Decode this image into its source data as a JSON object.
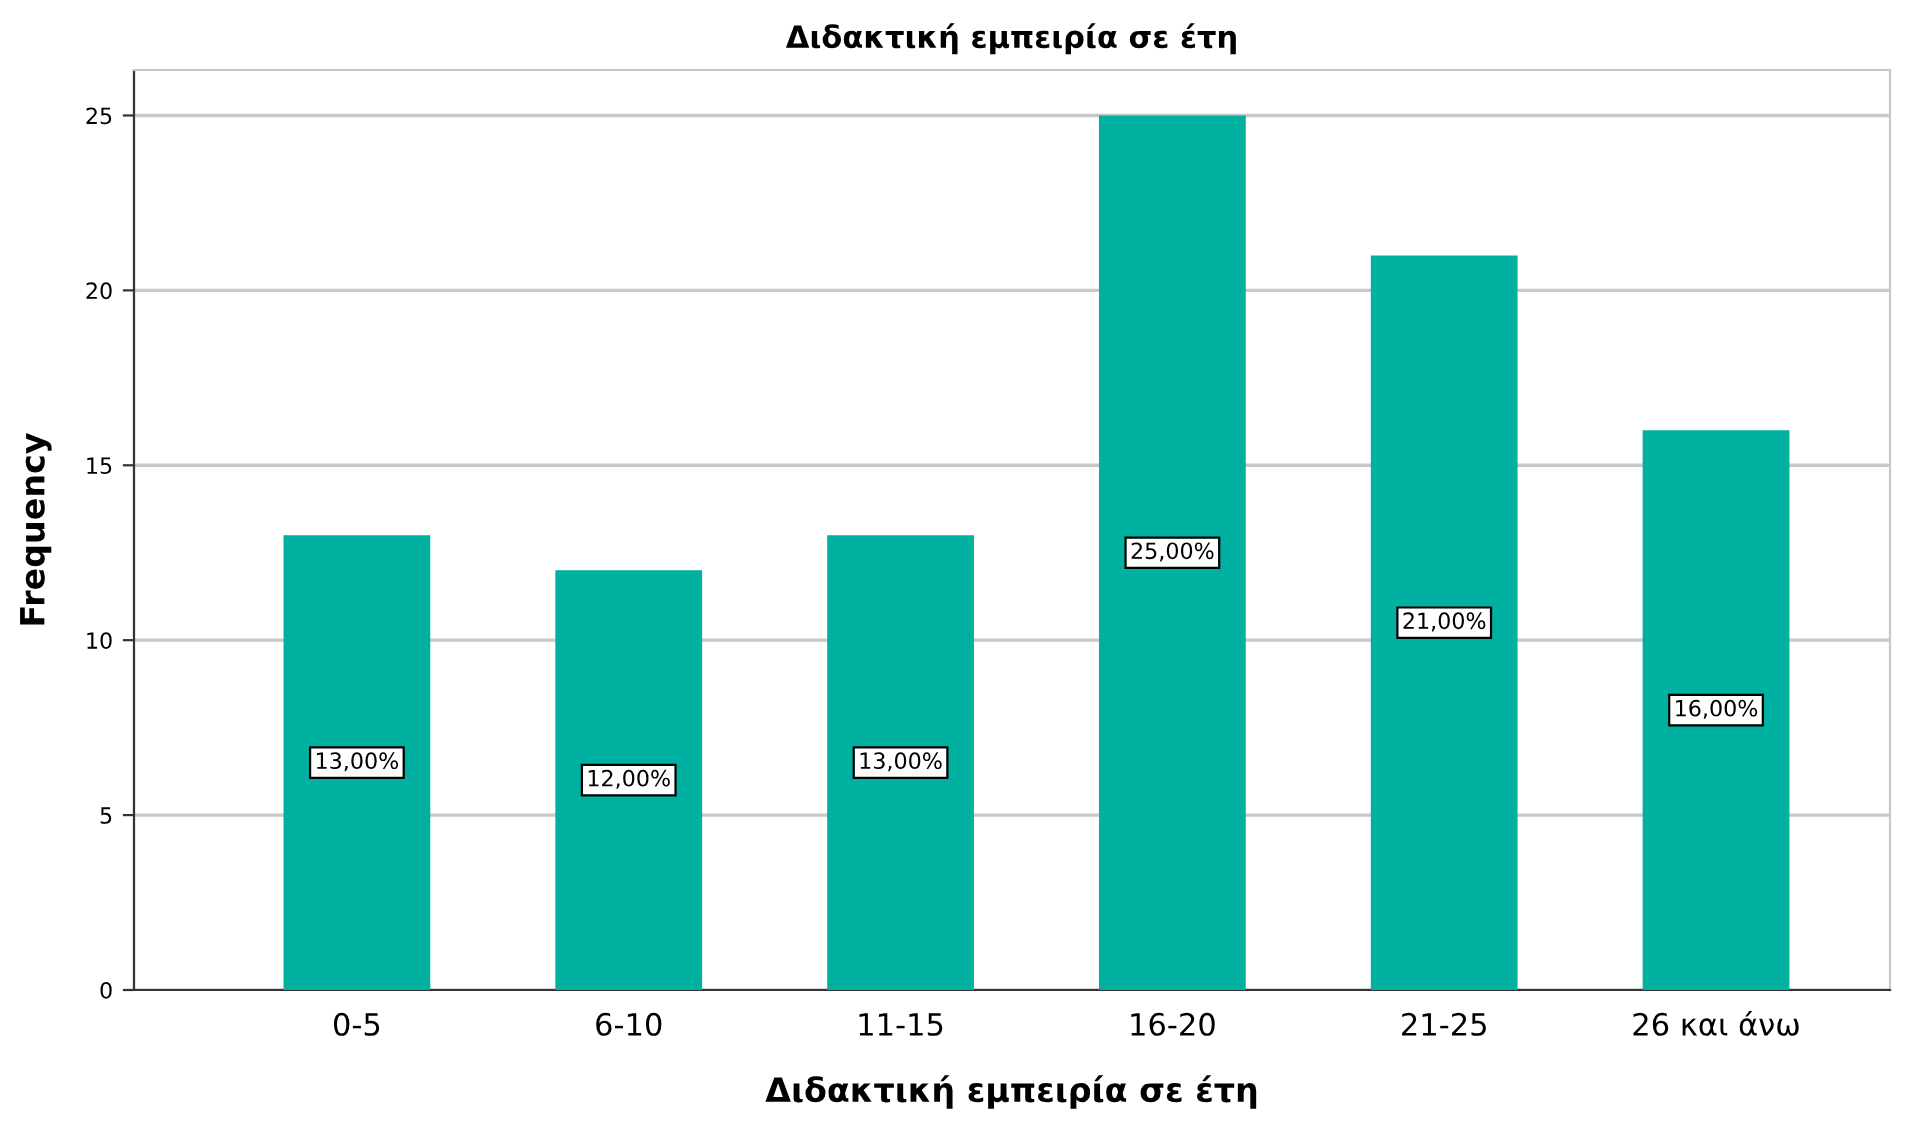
{
  "chart_data": {
    "type": "bar",
    "title": "Διδακτική εμπειρία σε έτη",
    "xlabel": "Διδακτική εμπειρία σε έτη",
    "ylabel": "Frequency",
    "categories": [
      "0-5",
      "6-10",
      "11-15",
      "16-20",
      "21-25",
      "26 και άνω"
    ],
    "values": [
      13,
      12,
      13,
      25,
      21,
      16
    ],
    "color": "#00b0a0",
    "value_labels": [
      "13,00%",
      "12,00%",
      "13,00%",
      "25,00%",
      "21,00%",
      "16,00%"
    ],
    "ylim": [
      0,
      26.3
    ],
    "yticks": [
      0,
      5,
      10,
      15,
      20,
      25
    ],
    "grid": "y",
    "legend": false
  }
}
